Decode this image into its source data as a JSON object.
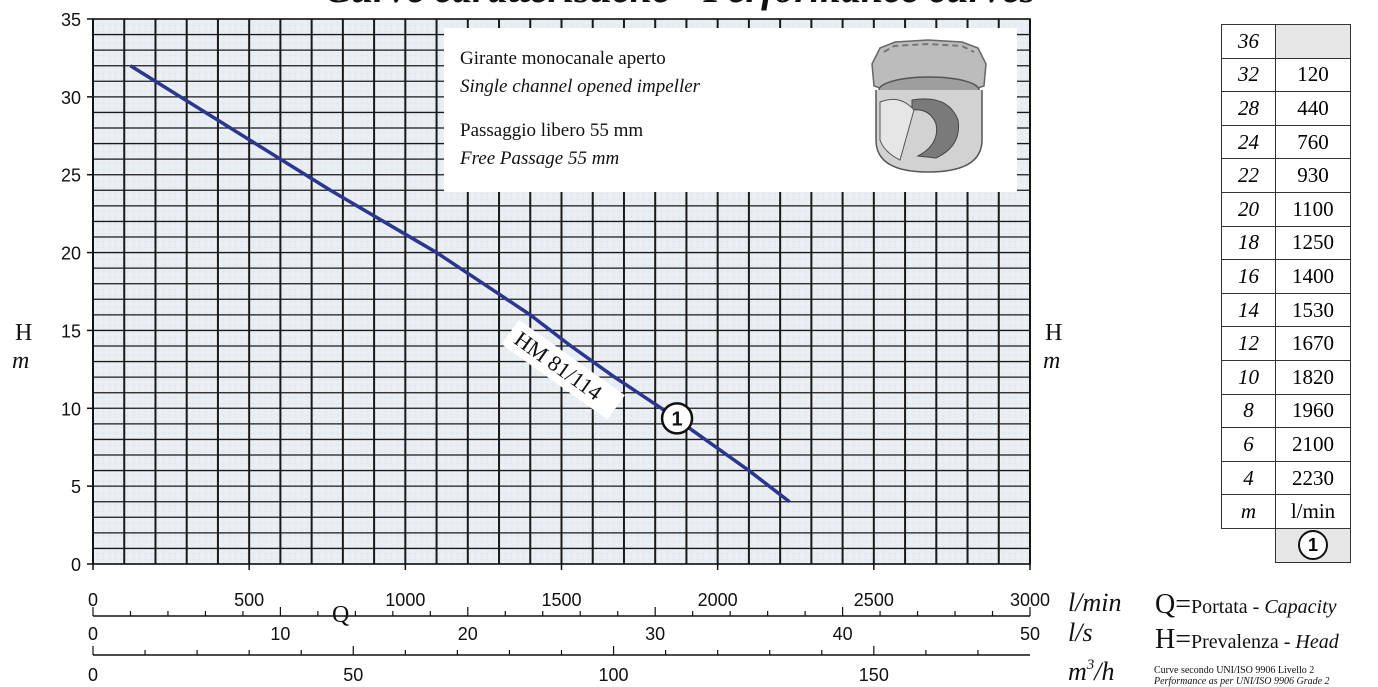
{
  "page_title": "Curve caratteristiche - Performance curves",
  "info_box": {
    "line1": "Girante monocanale aperto",
    "line2": "Single channel opened impeller",
    "line3": "Passaggio libero 55 mm",
    "line4": "Free Passage 55 mm"
  },
  "axis_units": {
    "h_letter": "H",
    "h_unit": "m",
    "q_letter": "Q",
    "lmin": "l/min",
    "ls": "l/s",
    "m3h_base": "m",
    "m3h_sup": "3",
    "m3h_tail": "/h"
  },
  "legend": {
    "q_symbol": "Q=",
    "q_text": "Portata - ",
    "q_text_italic": "Capacity",
    "h_symbol": "H=",
    "h_text": "Prevalenza - ",
    "h_text_italic": "Head",
    "norm_line1": "Curve secondo UNI/ISO 9906 Livello 2",
    "norm_line2": "Performance as per UNI/ISO 9906 Grade 2"
  },
  "table": {
    "rows": [
      {
        "h": "36",
        "q": ""
      },
      {
        "h": "32",
        "q": "120"
      },
      {
        "h": "28",
        "q": "440"
      },
      {
        "h": "24",
        "q": "760"
      },
      {
        "h": "22",
        "q": "930"
      },
      {
        "h": "20",
        "q": "1100"
      },
      {
        "h": "18",
        "q": "1250"
      },
      {
        "h": "16",
        "q": "1400"
      },
      {
        "h": "14",
        "q": "1530"
      },
      {
        "h": "12",
        "q": "1670"
      },
      {
        "h": "10",
        "q": "1820"
      },
      {
        "h": "8",
        "q": "1960"
      },
      {
        "h": "6",
        "q": "2100"
      },
      {
        "h": "4",
        "q": "2230"
      }
    ],
    "unit_h": "m",
    "unit_q": "l/min",
    "marker": "1"
  },
  "chart_data": {
    "type": "line",
    "xlabel": "Q",
    "ylabel": "H",
    "x_unit": "l/min",
    "y_unit": "m",
    "xlim": [
      0,
      3000
    ],
    "ylim": [
      0,
      35
    ],
    "x_ticks": [
      "0",
      "500",
      "1000",
      "1500",
      "2000",
      "2500",
      "3000"
    ],
    "y_ticks": [
      "0",
      "5",
      "10",
      "15",
      "20",
      "25",
      "30",
      "35"
    ],
    "x2_ticks": [
      "0",
      "10",
      "20",
      "30",
      "40",
      "50"
    ],
    "x2_unit": "l/s",
    "x3_ticks": [
      "0",
      "50",
      "100",
      "150"
    ],
    "x3_unit": "m3/h",
    "grid": true,
    "series": [
      {
        "name": "HM 81/114",
        "marker": "1",
        "color": "#2b3690",
        "x": [
          120,
          440,
          760,
          930,
          1100,
          1250,
          1400,
          1530,
          1670,
          1820,
          1960,
          2100,
          2230
        ],
        "y": [
          32,
          28,
          24,
          22,
          20,
          18,
          16,
          14,
          12,
          10,
          8,
          6,
          4
        ]
      }
    ]
  }
}
